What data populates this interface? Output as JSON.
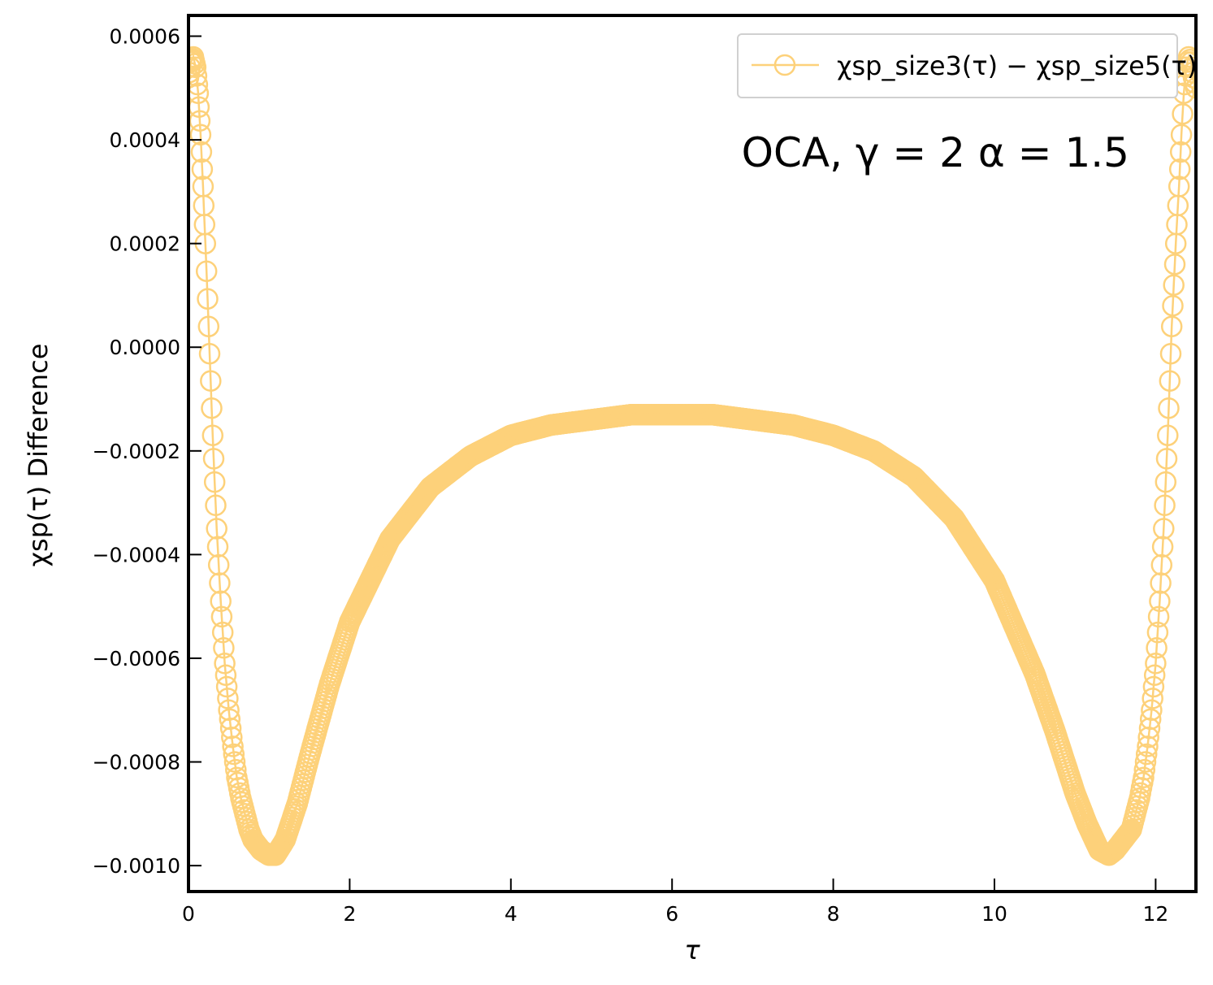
{
  "chart_data": {
    "type": "scatter",
    "title": "",
    "xlabel": "τ",
    "ylabel": "χsp(τ) Difference",
    "xlim": [
      0,
      12.5
    ],
    "ylim": [
      -0.00105,
      0.00064
    ],
    "xticks": [
      0,
      2,
      4,
      6,
      8,
      10,
      12
    ],
    "xtick_labels": [
      "0",
      "2",
      "4",
      "6",
      "8",
      "10",
      "12"
    ],
    "yticks": [
      0.0006,
      0.0004,
      0.0002,
      0.0,
      -0.0002,
      -0.0004,
      -0.0006,
      -0.0008,
      -0.001
    ],
    "ytick_labels": [
      "0.0006",
      "0.0004",
      "0.0002",
      "0.0000",
      "−0.0002",
      "−0.0004",
      "−0.0006",
      "−0.0008",
      "−0.0010"
    ],
    "grid": false,
    "legend_position": "top-right",
    "marker": "open-circle",
    "series": [
      {
        "name": "χsp_size3(τ) − χsp_size5(τ)",
        "color": "#fdd17a",
        "x": [
          0.0,
          0.03,
          0.06,
          0.09,
          0.12,
          0.15,
          0.18,
          0.21,
          0.25,
          0.3,
          0.35,
          0.4,
          0.45,
          0.5,
          0.55,
          0.6,
          0.65,
          0.7,
          0.75,
          0.8,
          0.9,
          1.0,
          1.08,
          1.2,
          1.35,
          1.5,
          1.75,
          2.0,
          2.5,
          3.0,
          3.5,
          4.0,
          4.5,
          5.0,
          5.5,
          6.0,
          6.25,
          6.5,
          7.0,
          7.5,
          8.0,
          8.5,
          9.0,
          9.5,
          10.0,
          10.5,
          10.75,
          11.0,
          11.15,
          11.3,
          11.42,
          11.5,
          11.6,
          11.7,
          11.75,
          11.8,
          11.85,
          11.9,
          11.95,
          12.0,
          12.05,
          12.1,
          12.15,
          12.2,
          12.25,
          12.29,
          12.32,
          12.35,
          12.38,
          12.41,
          12.44,
          12.47,
          12.5
        ],
        "y": [
          0.00052,
          0.00055,
          0.00056,
          0.00054,
          0.00049,
          0.00041,
          0.00031,
          0.0002,
          4e-05,
          -0.00017,
          -0.00035,
          -0.00049,
          -0.00061,
          -0.0007,
          -0.00077,
          -0.00083,
          -0.00087,
          -0.0009,
          -0.00093,
          -0.00095,
          -0.00097,
          -0.00098,
          -0.00098,
          -0.00095,
          -0.00088,
          -0.00079,
          -0.00065,
          -0.00053,
          -0.00037,
          -0.00027,
          -0.00021,
          -0.00017,
          -0.00015,
          -0.00014,
          -0.00013,
          -0.00013,
          -0.00013,
          -0.00013,
          -0.00014,
          -0.00015,
          -0.00017,
          -0.0002,
          -0.00025,
          -0.00033,
          -0.00045,
          -0.00063,
          -0.00074,
          -0.00086,
          -0.00092,
          -0.00097,
          -0.00098,
          -0.00097,
          -0.00095,
          -0.00093,
          -0.0009,
          -0.00087,
          -0.00083,
          -0.00077,
          -0.0007,
          -0.00061,
          -0.00049,
          -0.00035,
          -0.00017,
          4e-05,
          0.0002,
          0.00031,
          0.00041,
          0.00049,
          0.00054,
          0.00056,
          0.00055,
          0.00052,
          0.0005
        ]
      }
    ],
    "annotation": "OCA, γ = 2 α = 1.5"
  }
}
